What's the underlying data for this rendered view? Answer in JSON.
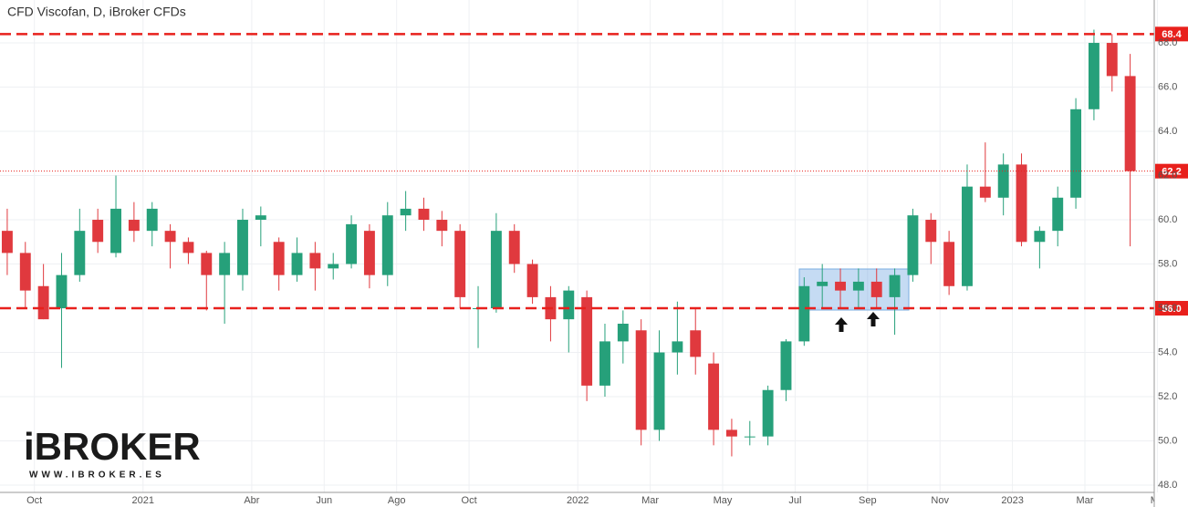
{
  "chart_data": {
    "type": "candlestick",
    "title": "CFD Viscofan, D, iBroker CFDs",
    "categories": [
      null,
      null,
      "Oct",
      null,
      null,
      null,
      null,
      null,
      "2021",
      null,
      null,
      null,
      null,
      null,
      "Abr",
      null,
      null,
      null,
      "Jun",
      null,
      null,
      null,
      "Ago",
      null,
      null,
      null,
      "Oct",
      null,
      null,
      null,
      null,
      null,
      "2022",
      null,
      null,
      null,
      "Mar",
      null,
      null,
      null,
      "May",
      null,
      null,
      null,
      "Jul",
      null,
      null,
      null,
      "Sep",
      null,
      null,
      null,
      "Nov",
      null,
      null,
      null,
      "2023",
      null,
      null,
      null,
      "Mar",
      null,
      null,
      null,
      "Ma"
    ],
    "open": [
      59.5,
      58.5,
      57,
      56,
      57.5,
      60,
      58.5,
      60,
      59.5,
      59.5,
      59,
      58.5,
      57.5,
      57.5,
      60,
      59,
      57.5,
      58.5,
      57.8,
      58,
      59.5,
      57.5,
      60.2,
      60.5,
      60,
      59.5,
      56,
      56,
      59.5,
      58,
      56.5,
      55.5,
      56.5,
      52.5,
      54.5,
      55,
      50.5,
      54,
      55,
      53.5,
      50.5,
      50.2,
      50.2,
      52.3,
      54.5,
      57,
      57.2,
      56.8,
      57.2,
      56.5,
      57.5,
      60,
      59,
      57,
      61.5,
      61,
      62.5,
      59,
      59.5,
      61,
      65,
      68,
      66.5,
      null,
      null
    ],
    "high": [
      60.5,
      59,
      58,
      58.5,
      60.5,
      60.5,
      62,
      60.8,
      60.8,
      59.8,
      59.2,
      58.6,
      59,
      60.5,
      60.6,
      59.2,
      59.2,
      59,
      58.5,
      60.2,
      59.8,
      60.8,
      61.3,
      61,
      60.4,
      59.8,
      57,
      60.3,
      59.8,
      58.2,
      57,
      57,
      56.8,
      55.3,
      55.9,
      55.5,
      55,
      56.3,
      56,
      54,
      51,
      50.9,
      52.5,
      54.6,
      57.4,
      58,
      57.8,
      57.8,
      57.8,
      57.8,
      60.5,
      60.3,
      59.5,
      62.5,
      63.5,
      63,
      63,
      59.7,
      61.5,
      65.5,
      68.6,
      68.4,
      67.5,
      null,
      null
    ],
    "low": [
      57.5,
      56,
      55.5,
      53.3,
      57.2,
      58.5,
      58.3,
      59,
      58.8,
      57.8,
      58,
      55.9,
      55.3,
      56.8,
      58.8,
      56.8,
      57.2,
      56.8,
      57.3,
      57.8,
      56.9,
      57,
      59.5,
      59.5,
      58.8,
      56,
      54.2,
      55.8,
      57.6,
      56.2,
      54.5,
      54,
      51.8,
      52,
      53.5,
      49.8,
      50,
      53,
      53,
      49.8,
      49.3,
      49.8,
      49.8,
      51.8,
      54.3,
      56,
      56,
      56,
      56,
      54.8,
      57.2,
      58,
      56.6,
      56.8,
      60.8,
      60.2,
      58.8,
      57.8,
      58.8,
      60.5,
      64.5,
      65.8,
      58.8,
      null,
      null
    ],
    "close": [
      58.5,
      56.8,
      55.5,
      57.5,
      59.5,
      59,
      60.5,
      59.5,
      60.5,
      59,
      58.5,
      57.5,
      58.5,
      60,
      60.2,
      57.5,
      58.5,
      57.8,
      58,
      59.8,
      57.5,
      60.2,
      60.5,
      60,
      59.5,
      56.5,
      56,
      59.5,
      58,
      56.5,
      55.5,
      56.8,
      52.5,
      54.5,
      55.3,
      50.5,
      54,
      54.5,
      53.8,
      50.5,
      50.2,
      50.2,
      52.3,
      54.5,
      57,
      57.2,
      56.8,
      57.2,
      56.5,
      57.5,
      60.2,
      59,
      57,
      61.5,
      61,
      62.5,
      59,
      59.5,
      61,
      65,
      68,
      66.5,
      62.2,
      null,
      null
    ],
    "up_color": "#26a07a",
    "down_color": "#e0393e",
    "ylim": [
      47.67,
      69.94
    ],
    "yticks": [
      {
        "value": 48,
        "label": "48.0"
      },
      {
        "value": 50,
        "label": "50.0"
      },
      {
        "value": 52,
        "label": "52.0"
      },
      {
        "value": 54,
        "label": "54.0"
      },
      {
        "value": 56,
        "label": "56.0"
      },
      {
        "value": 58,
        "label": "58.0"
      },
      {
        "value": 60,
        "label": "60.0"
      },
      {
        "value": 62,
        "label": "62.0"
      },
      {
        "value": 64,
        "label": "64.0"
      },
      {
        "value": 66,
        "label": "66.0"
      },
      {
        "value": 68,
        "label": "68.0"
      }
    ],
    "grid": true,
    "levels": [
      {
        "price": 68.4,
        "style": "dashed",
        "color": "#e8201c"
      },
      {
        "price": {
          "value": 56,
          "label": "56.0"
        },
        "style": "dashed",
        "color": "#e8201c"
      },
      {
        "price": 62.2,
        "style": "dotted",
        "color": "#e8201c"
      }
    ],
    "watermark": {
      "logo": "iBROKER",
      "url": "WWW.IBROKER.ES"
    }
  }
}
